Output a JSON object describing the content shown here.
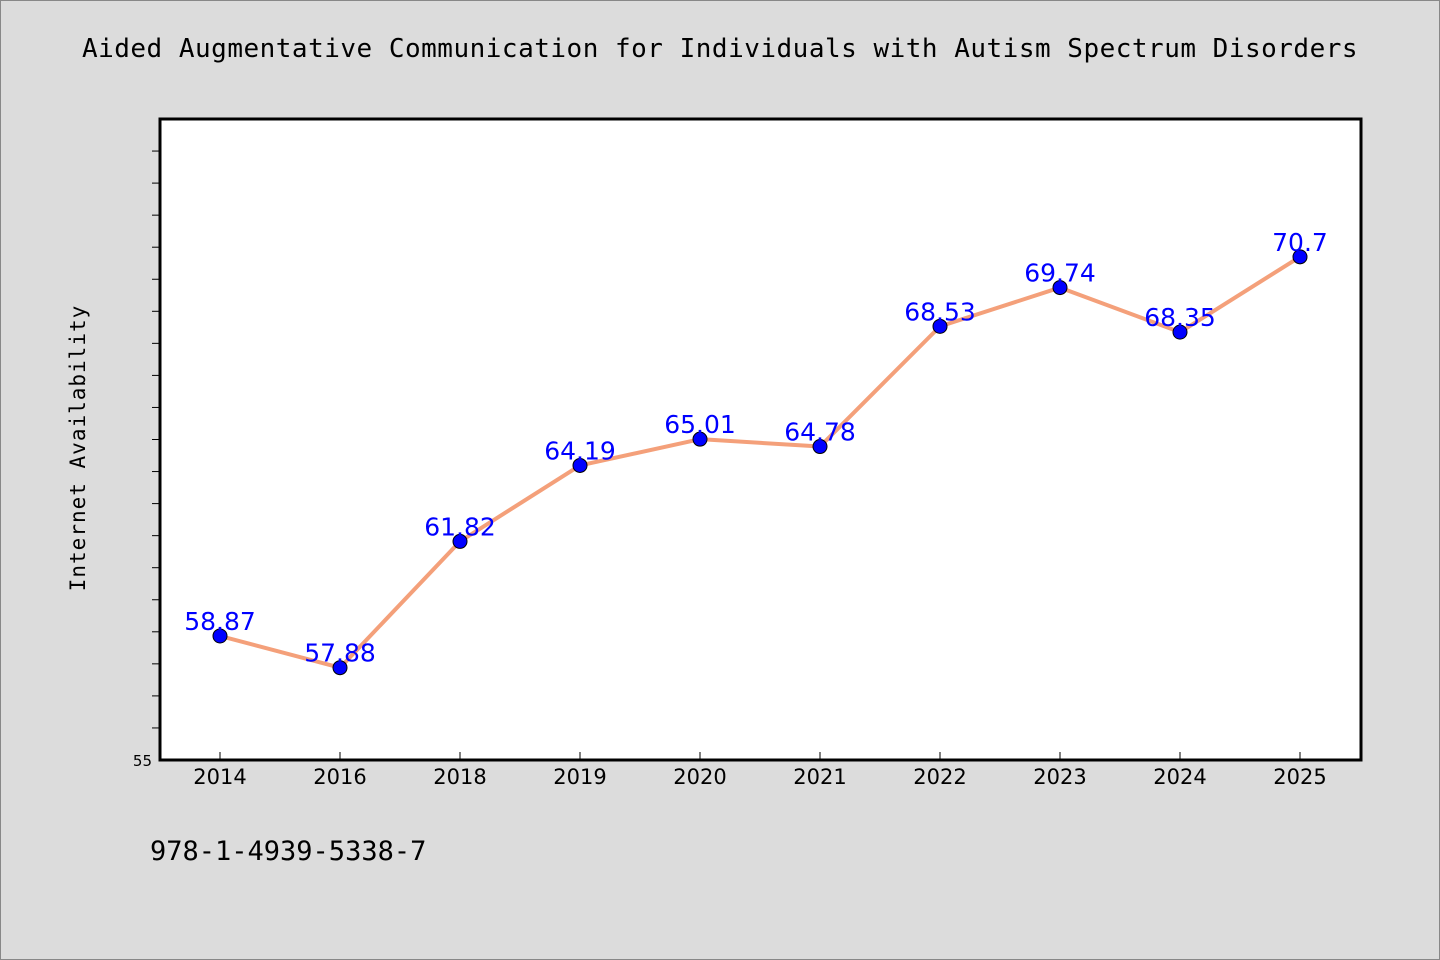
{
  "chart_data": {
    "type": "line",
    "title": "Aided Augmentative Communication for Individuals with Autism Spectrum Disorders",
    "ylabel": "Internet Availability",
    "xlabel": "",
    "categories": [
      "2014",
      "2016",
      "2018",
      "2019",
      "2020",
      "2021",
      "2022",
      "2023",
      "2024",
      "2025"
    ],
    "series": [
      {
        "values": [
          58.87,
          57.88,
          61.82,
          64.19,
          65.01,
          64.78,
          68.53,
          69.74,
          68.35,
          70.7
        ],
        "data_labels": [
          "58.87",
          "57.88",
          "61.82",
          "64.19",
          "65.01",
          "64.78",
          "68.53",
          "69.74",
          "68.35",
          "70.7"
        ],
        "line_color": "#f4a07a",
        "marker_color": "#0000ff"
      }
    ],
    "ylim": [
      55,
      75
    ],
    "yticks_labeled": [
      "55"
    ],
    "minor_tick_step": 1,
    "grid": false,
    "legend": "none"
  },
  "footnote": "978-1-4939-5338-7",
  "colors": {
    "background": "#dcdcdc",
    "plot_background": "#ffffff",
    "line": "#f4a07a",
    "marker": "#0000ff",
    "data_label": "#0000ff"
  }
}
